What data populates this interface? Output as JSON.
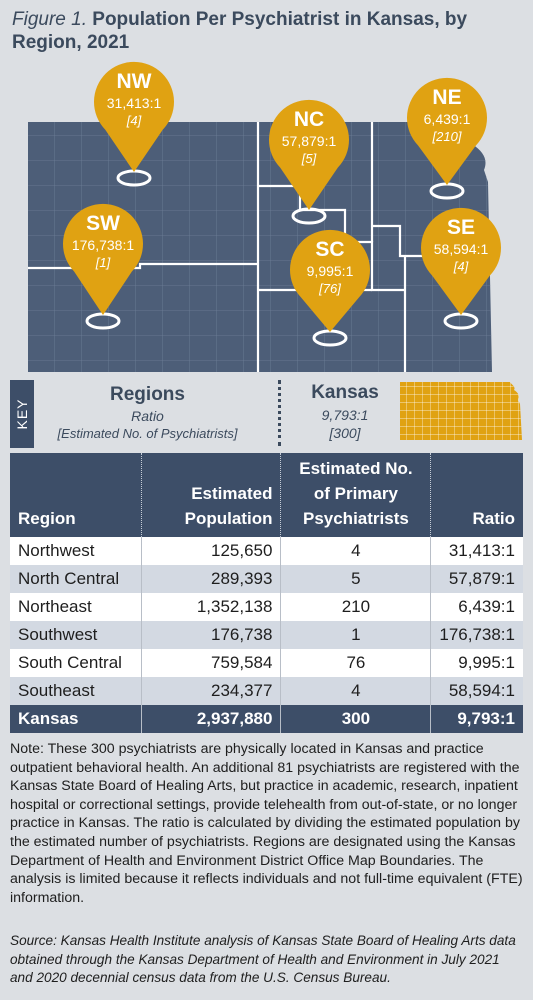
{
  "title": {
    "figure_label": "Figure 1.",
    "text": "Population Per Psychiatrist in Kansas, by Region, 2021"
  },
  "colors": {
    "navy": "#3d4e68",
    "gold": "#e0a212",
    "map_fill": "#4d5e78",
    "background": "#dcdfe3"
  },
  "map": {
    "pins": [
      {
        "code": "NW",
        "ratio": "31,413:1",
        "psychiatrists": "[4]"
      },
      {
        "code": "NC",
        "ratio": "57,879:1",
        "psychiatrists": "[5]"
      },
      {
        "code": "NE",
        "ratio": "6,439:1",
        "psychiatrists": "[210]"
      },
      {
        "code": "SW",
        "ratio": "176,738:1",
        "psychiatrists": "[1]"
      },
      {
        "code": "SC",
        "ratio": "9,995:1",
        "psychiatrists": "[76]"
      },
      {
        "code": "SE",
        "ratio": "58,594:1",
        "psychiatrists": "[4]"
      }
    ]
  },
  "key": {
    "tab_label": "KEY",
    "regions_heading": "Regions",
    "regions_ratio": "Ratio",
    "regions_est": "[Estimated No. of Psychiatrists]",
    "kansas_heading": "Kansas",
    "kansas_ratio": "9,793:1",
    "kansas_count": "[300]"
  },
  "table": {
    "headers": {
      "region": "Region",
      "population": "Estimated Population",
      "psychiatrists": "Estimated No. of Primary Psychiatrists",
      "ratio": "Ratio"
    },
    "rows": [
      {
        "region": "Northwest",
        "population": "125,650",
        "psychiatrists": "4",
        "ratio": "31,413:1"
      },
      {
        "region": "North Central",
        "population": "289,393",
        "psychiatrists": "5",
        "ratio": "57,879:1"
      },
      {
        "region": "Northeast",
        "population": "1,352,138",
        "psychiatrists": "210",
        "ratio": "6,439:1"
      },
      {
        "region": "Southwest",
        "population": "176,738",
        "psychiatrists": "1",
        "ratio": "176,738:1"
      },
      {
        "region": "South Central",
        "population": "759,584",
        "psychiatrists": "76",
        "ratio": "9,995:1"
      },
      {
        "region": "Southeast",
        "population": "234,377",
        "psychiatrists": "4",
        "ratio": "58,594:1"
      }
    ],
    "total": {
      "region": "Kansas",
      "population": "2,937,880",
      "psychiatrists": "300",
      "ratio": "9,793:1"
    }
  },
  "note": "Note: These 300 psychiatrists are physically located in Kansas and practice outpatient behavioral health. An additional 81 psychiatrists are registered with the Kansas State Board of Healing Arts, but practice in academic, research, inpatient hospital or correctional settings, provide telehealth from out-of-state, or no longer practice in Kansas. The ratio is calculated by dividing the estimated population by the estimated number of psychiatrists. Regions are designated using the Kansas Department of Health and Environment District Office Map Boundaries. The analysis is limited because it reflects individuals and not full-time equivalent (FTE) information.",
  "source": "Source: Kansas Health Institute analysis of Kansas State Board of Healing Arts data obtained through the Kansas Department of Health and Environment in July 2021 and 2020 decennial census data from the U.S. Census Bureau."
}
